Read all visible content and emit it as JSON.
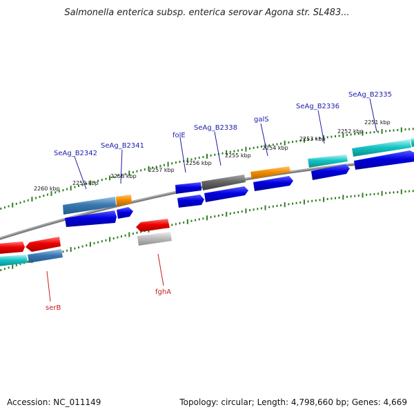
{
  "title": "Salmonella enterica subsp. enterica serovar Agona str. SL483...",
  "footer": {
    "accession": "Accession: NC_011149",
    "summary": "Topology: circular; Length: 4,798,660 bp; Genes: 4,669"
  },
  "colors": {
    "backbone": "#8a8a8a",
    "tick": "#2e7d1e",
    "label_top": "#1a1aa8",
    "label_bottom": "#c41a1a"
  },
  "scale": {
    "labels": [
      "2251 kbp",
      "2252 kbp",
      "2253 kbp",
      "2254 kbp",
      "2255 kbp",
      "2256 kbp",
      "2257 kbp",
      "2258 kbp",
      "2259 kbp",
      "2260 kbp"
    ]
  },
  "labels_top": [
    "SeAg_B2335",
    "SeAg_B2336",
    "galS",
    "SeAg_B2338",
    "folE",
    "SeAg_B2341",
    "SeAg_B2342"
  ],
  "labels_bottom": [
    "serB",
    "fghA"
  ]
}
